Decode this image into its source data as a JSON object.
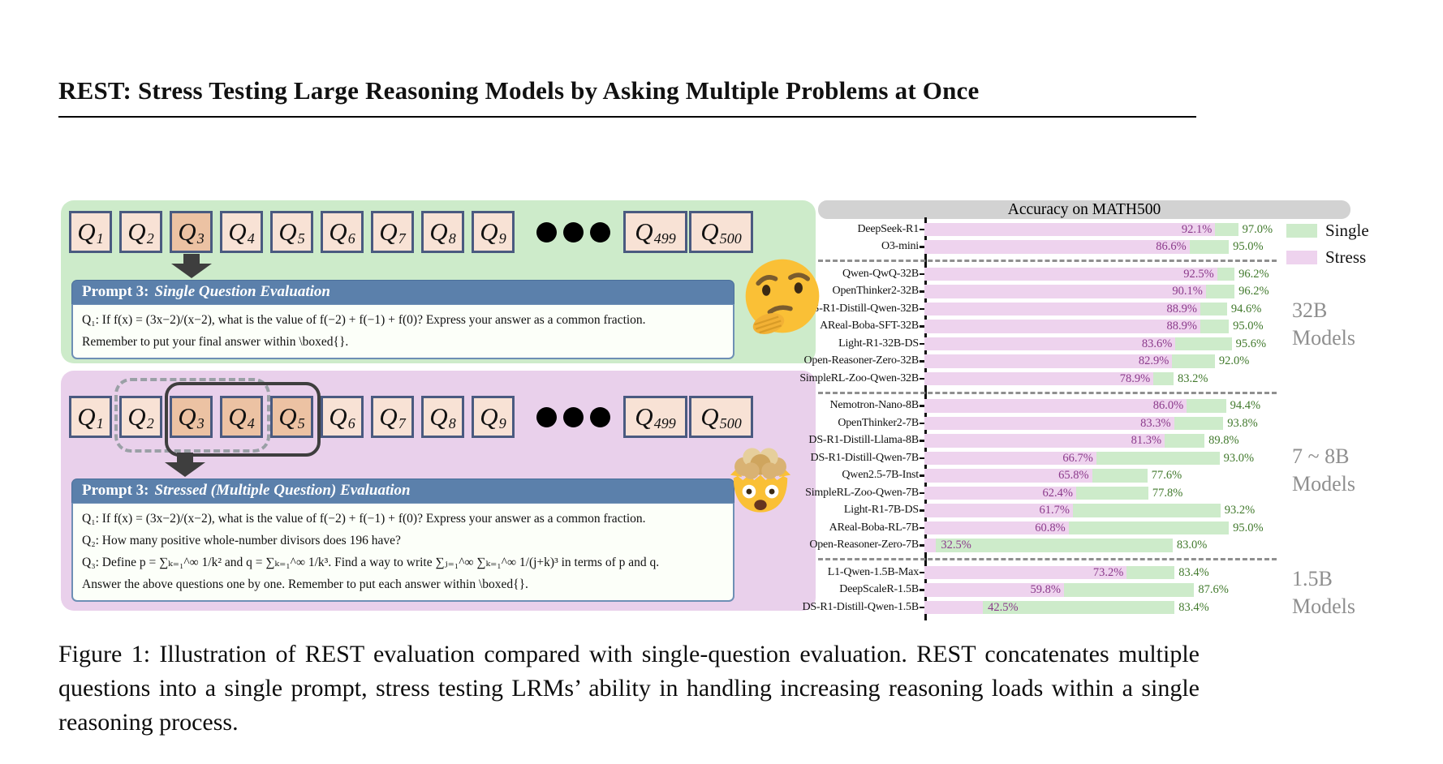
{
  "page": {
    "title": "REST: Stress Testing Large Reasoning Models by Asking Multiple Problems at Once",
    "caption": "Figure 1: Illustration of REST evaluation compared with single-question evaluation. REST concatenates multiple questions into a single prompt, stress testing LRMs’ ability in handling increasing reasoning loads within a single reasoning process."
  },
  "single_panel": {
    "emoji": "thinking-face",
    "tile_letter": "Q",
    "tiles": [
      "1",
      "2",
      "3",
      "4",
      "5",
      "6",
      "7",
      "8",
      "9"
    ],
    "highlighted": [
      "3"
    ],
    "tail_tiles": [
      "499",
      "500"
    ],
    "dots": 3,
    "prompt": {
      "header_prefix": "Prompt 3:",
      "header_title": "Single Question Evaluation",
      "lines": [
        "Q₁: If f(x) = (3x−2)/(x−2), what is the value of f(−2) + f(−1) + f(0)? Express your answer as a common fraction.",
        "Remember to put your final answer within \\boxed{}."
      ]
    }
  },
  "stress_panel": {
    "emoji": "exploding-head",
    "tile_letter": "Q",
    "tiles": [
      "1",
      "2",
      "3",
      "4",
      "5",
      "6",
      "7",
      "8",
      "9"
    ],
    "highlighted": [
      "3",
      "4",
      "5"
    ],
    "tail_tiles": [
      "499",
      "500"
    ],
    "dots": 3,
    "prompt": {
      "header_prefix": "Prompt 3:",
      "header_title": "Stressed (Multiple Question) Evaluation",
      "lines": [
        "Q₁: If f(x) = (3x−2)/(x−2), what is the value of f(−2) + f(−1) + f(0)? Express your answer as a common fraction.",
        "Q₂: How many positive whole-number divisors does 196 have?",
        "Q₃: Define p = ∑ₖ₌₁^∞ 1/k²  and  q = ∑ₖ₌₁^∞ 1/k³. Find a way to write ∑ⱼ₌₁^∞ ∑ₖ₌₁^∞ 1/(j+k)³ in terms of p and q.",
        "Answer the above questions one by one. Remember to put each answer within \\boxed{}."
      ]
    }
  },
  "chart_data": {
    "type": "bar",
    "orientation": "horizontal",
    "title": "Accuracy on MATH500",
    "xlim": [
      30,
      100
    ],
    "unit": "%",
    "legend": [
      {
        "label": "Single",
        "color": "#cdebca"
      },
      {
        "label": "Stress",
        "color": "#eed3ee"
      }
    ],
    "groups": [
      {
        "label": "",
        "rows": [
          {
            "model": "DeepSeek-R1",
            "stress": 92.1,
            "single": 97.0
          },
          {
            "model": "O3-mini",
            "stress": 86.6,
            "single": 95.0
          }
        ]
      },
      {
        "label": "32B Models",
        "rows": [
          {
            "model": "Qwen-QwQ-32B",
            "stress": 92.5,
            "single": 96.2
          },
          {
            "model": "OpenThinker2-32B",
            "stress": 90.1,
            "single": 96.2
          },
          {
            "model": "DS-R1-Distill-Qwen-32B",
            "stress": 88.9,
            "single": 94.6
          },
          {
            "model": "AReal-Boba-SFT-32B",
            "stress": 88.9,
            "single": 95.0
          },
          {
            "model": "Light-R1-32B-DS",
            "stress": 83.6,
            "single": 95.6
          },
          {
            "model": "Open-Reasoner-Zero-32B",
            "stress": 82.9,
            "single": 92.0
          },
          {
            "model": "SimpleRL-Zoo-Qwen-32B",
            "stress": 78.9,
            "single": 83.2
          }
        ]
      },
      {
        "label": "7 ~ 8B Models",
        "rows": [
          {
            "model": "Nemotron-Nano-8B",
            "stress": 86.0,
            "single": 94.4
          },
          {
            "model": "OpenThinker2-7B",
            "stress": 83.3,
            "single": 93.8
          },
          {
            "model": "DS-R1-Distill-Llama-8B",
            "stress": 81.3,
            "single": 89.8
          },
          {
            "model": "DS-R1-Distill-Qwen-7B",
            "stress": 66.7,
            "single": 93.0
          },
          {
            "model": "Qwen2.5-7B-Inst",
            "stress": 65.8,
            "single": 77.6
          },
          {
            "model": "SimpleRL-Zoo-Qwen-7B",
            "stress": 62.4,
            "single": 77.8
          },
          {
            "model": "Light-R1-7B-DS",
            "stress": 61.7,
            "single": 93.2
          },
          {
            "model": "AReal-Boba-RL-7B",
            "stress": 60.8,
            "single": 95.0
          },
          {
            "model": "Open-Reasoner-Zero-7B",
            "stress": 32.5,
            "single": 83.0
          }
        ]
      },
      {
        "label": "1.5B Models",
        "rows": [
          {
            "model": "L1-Qwen-1.5B-Max",
            "stress": 73.2,
            "single": 83.4
          },
          {
            "model": "DeepScaleR-1.5B",
            "stress": 59.8,
            "single": 87.6
          },
          {
            "model": "DS-R1-Distill-Qwen-1.5B",
            "stress": 42.5,
            "single": 83.4
          }
        ]
      }
    ]
  },
  "colors": {
    "single_bar": "#cdebca",
    "stress_bar": "#eed3ee",
    "single_label_text": "#41792c",
    "stress_label_text": "#8b3a8b",
    "panel_single_bg": "#cdebca",
    "panel_stress_bg": "#e9d0eb",
    "tile_fill": "#f8e2d5",
    "tile_highlight": "#ecc2a3",
    "tile_border": "#4a5a80",
    "prompt_header_bg": "#5b80ab",
    "chart_title_bg": "#d2d2d2",
    "group_label_text": "#8f8f8f"
  }
}
